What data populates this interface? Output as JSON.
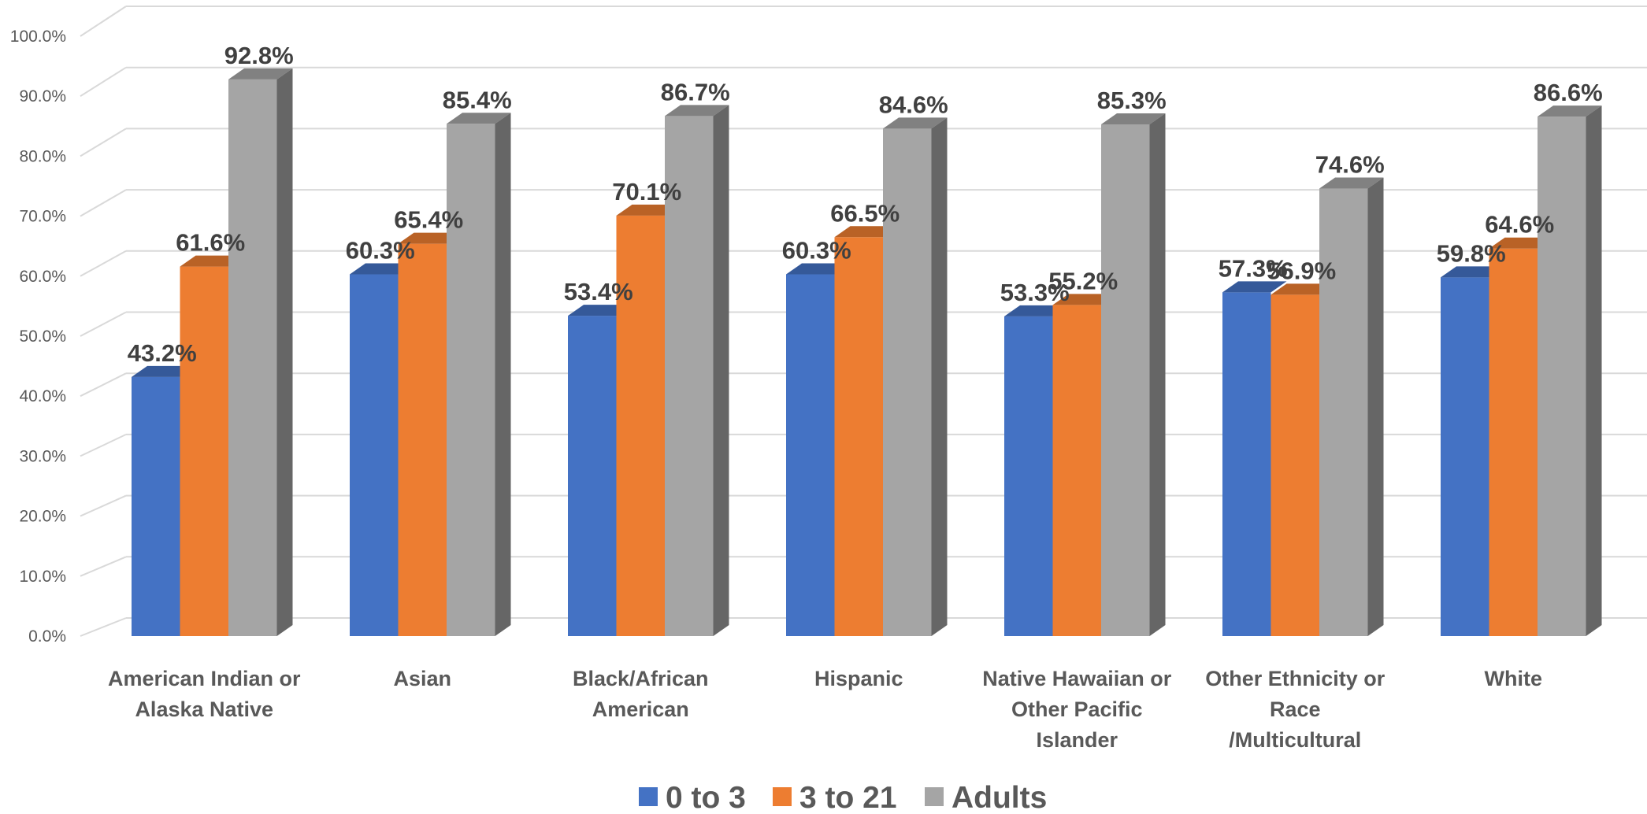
{
  "chart_data": {
    "type": "bar",
    "style": "3d-clustered-column",
    "title": "",
    "xlabel": "",
    "ylabel": "",
    "ylim": [
      0,
      100
    ],
    "y_tick_step": 10,
    "y_tick_format": "percent-1dp",
    "grid": true,
    "legend_position": "bottom",
    "categories": [
      [
        "American Indian or",
        "Alaska Native"
      ],
      [
        "Asian"
      ],
      [
        "Black/African",
        "American"
      ],
      [
        "Hispanic"
      ],
      [
        "Native Hawaiian or",
        "Other Pacific",
        "Islander"
      ],
      [
        "Other Ethnicity or",
        "Race",
        "/Multicultural"
      ],
      [
        "White"
      ]
    ],
    "series": [
      {
        "name": "0 to 3",
        "color": "#4472C4",
        "values": [
          43.2,
          60.3,
          53.4,
          60.3,
          53.3,
          57.3,
          59.8
        ]
      },
      {
        "name": "3 to 21",
        "color": "#ED7D31",
        "values": [
          61.6,
          65.4,
          70.1,
          66.5,
          55.2,
          56.9,
          64.6
        ]
      },
      {
        "name": "Adults",
        "color": "#A5A5A5",
        "values": [
          92.8,
          85.4,
          86.7,
          84.6,
          85.3,
          74.6,
          86.6
        ]
      }
    ],
    "data_label_format": "percent-1dp",
    "colors": {
      "grid": "#D9D9D9",
      "axis_text": "#595959",
      "label_text": "#404040"
    }
  }
}
